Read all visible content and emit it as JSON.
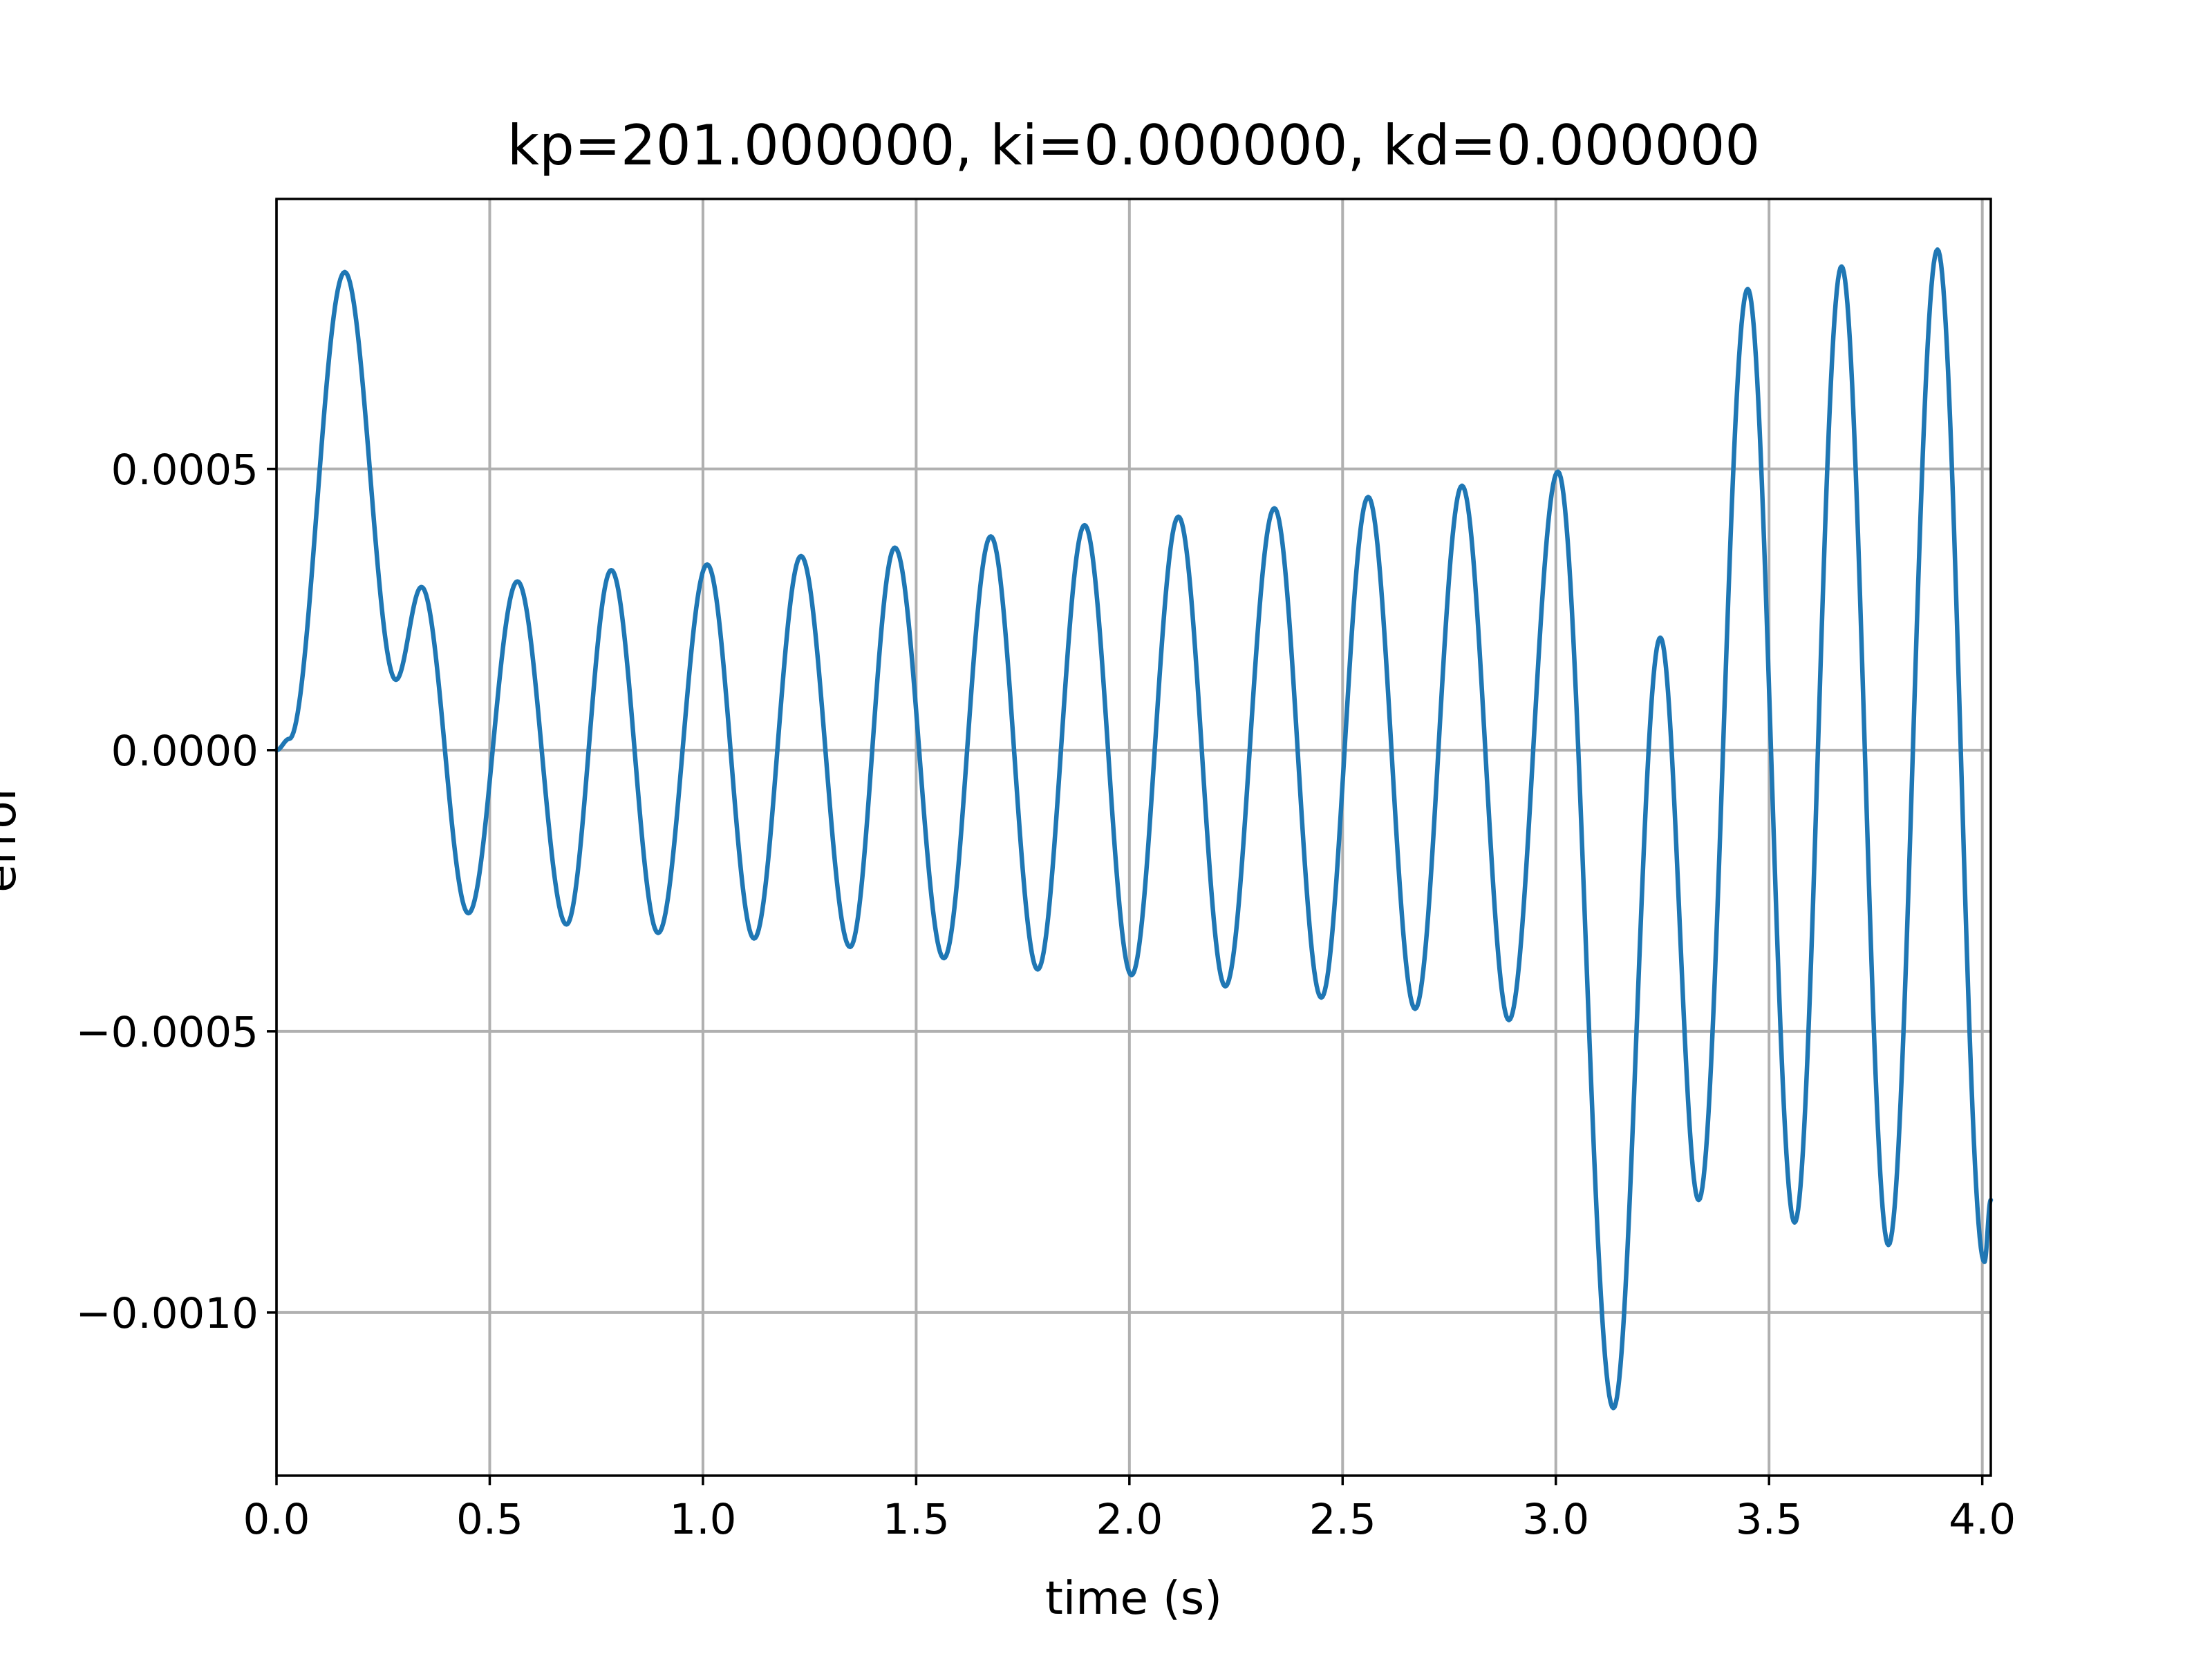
{
  "chart_data": {
    "type": "line",
    "title": "kp=201.000000, ki=0.000000, kd=0.000000",
    "xlabel": "time (s)",
    "ylabel": "error",
    "xlim": [
      0.0,
      4.02
    ],
    "ylim": [
      -0.00129,
      0.00098
    ],
    "grid": true,
    "x_ticks": [
      {
        "value": 0.0,
        "label": "0.0"
      },
      {
        "value": 0.5,
        "label": "0.5"
      },
      {
        "value": 1.0,
        "label": "1.0"
      },
      {
        "value": 1.5,
        "label": "1.5"
      },
      {
        "value": 2.0,
        "label": "2.0"
      },
      {
        "value": 2.5,
        "label": "2.5"
      },
      {
        "value": 3.0,
        "label": "3.0"
      },
      {
        "value": 3.5,
        "label": "3.5"
      },
      {
        "value": 4.0,
        "label": "4.0"
      }
    ],
    "y_ticks": [
      {
        "value": 0.0005,
        "label": "0.0005"
      },
      {
        "value": 0.0,
        "label": "0.0000"
      },
      {
        "value": -0.0005,
        "label": "−0.0005"
      },
      {
        "value": -0.001,
        "label": "−0.0010"
      }
    ],
    "series": [
      {
        "name": "error",
        "color": "#1f77b4",
        "extrema": [
          [
            0.0,
            0.0
          ],
          [
            0.03,
            2e-05
          ],
          [
            0.16,
            0.00085
          ],
          [
            0.28,
            0.000125
          ],
          [
            0.34,
            0.00029
          ],
          [
            0.45,
            -0.00029
          ],
          [
            0.565,
            0.0003
          ],
          [
            0.68,
            -0.00031
          ],
          [
            0.785,
            0.00032
          ],
          [
            0.895,
            -0.000325
          ],
          [
            1.01,
            0.00033
          ],
          [
            1.12,
            -0.000335
          ],
          [
            1.23,
            0.000345
          ],
          [
            1.345,
            -0.00035
          ],
          [
            1.45,
            0.00036
          ],
          [
            1.565,
            -0.00037
          ],
          [
            1.675,
            0.00038
          ],
          [
            1.785,
            -0.00039
          ],
          [
            1.895,
            0.0004
          ],
          [
            2.005,
            -0.0004
          ],
          [
            2.115,
            0.000415
          ],
          [
            2.225,
            -0.00042
          ],
          [
            2.34,
            0.00043
          ],
          [
            2.45,
            -0.00044
          ],
          [
            2.56,
            0.00045
          ],
          [
            2.67,
            -0.00046
          ],
          [
            2.78,
            0.00047
          ],
          [
            2.89,
            -0.00048
          ],
          [
            3.005,
            0.000495
          ],
          [
            3.135,
            -0.00117
          ],
          [
            3.245,
            0.0002
          ],
          [
            3.335,
            -0.0008
          ],
          [
            3.45,
            0.00082
          ],
          [
            3.56,
            -0.00084
          ],
          [
            3.67,
            0.00086
          ],
          [
            3.78,
            -0.00088
          ],
          [
            3.895,
            0.00089
          ],
          [
            4.005,
            -0.00091
          ],
          [
            4.02,
            -0.0008
          ]
        ]
      }
    ]
  }
}
